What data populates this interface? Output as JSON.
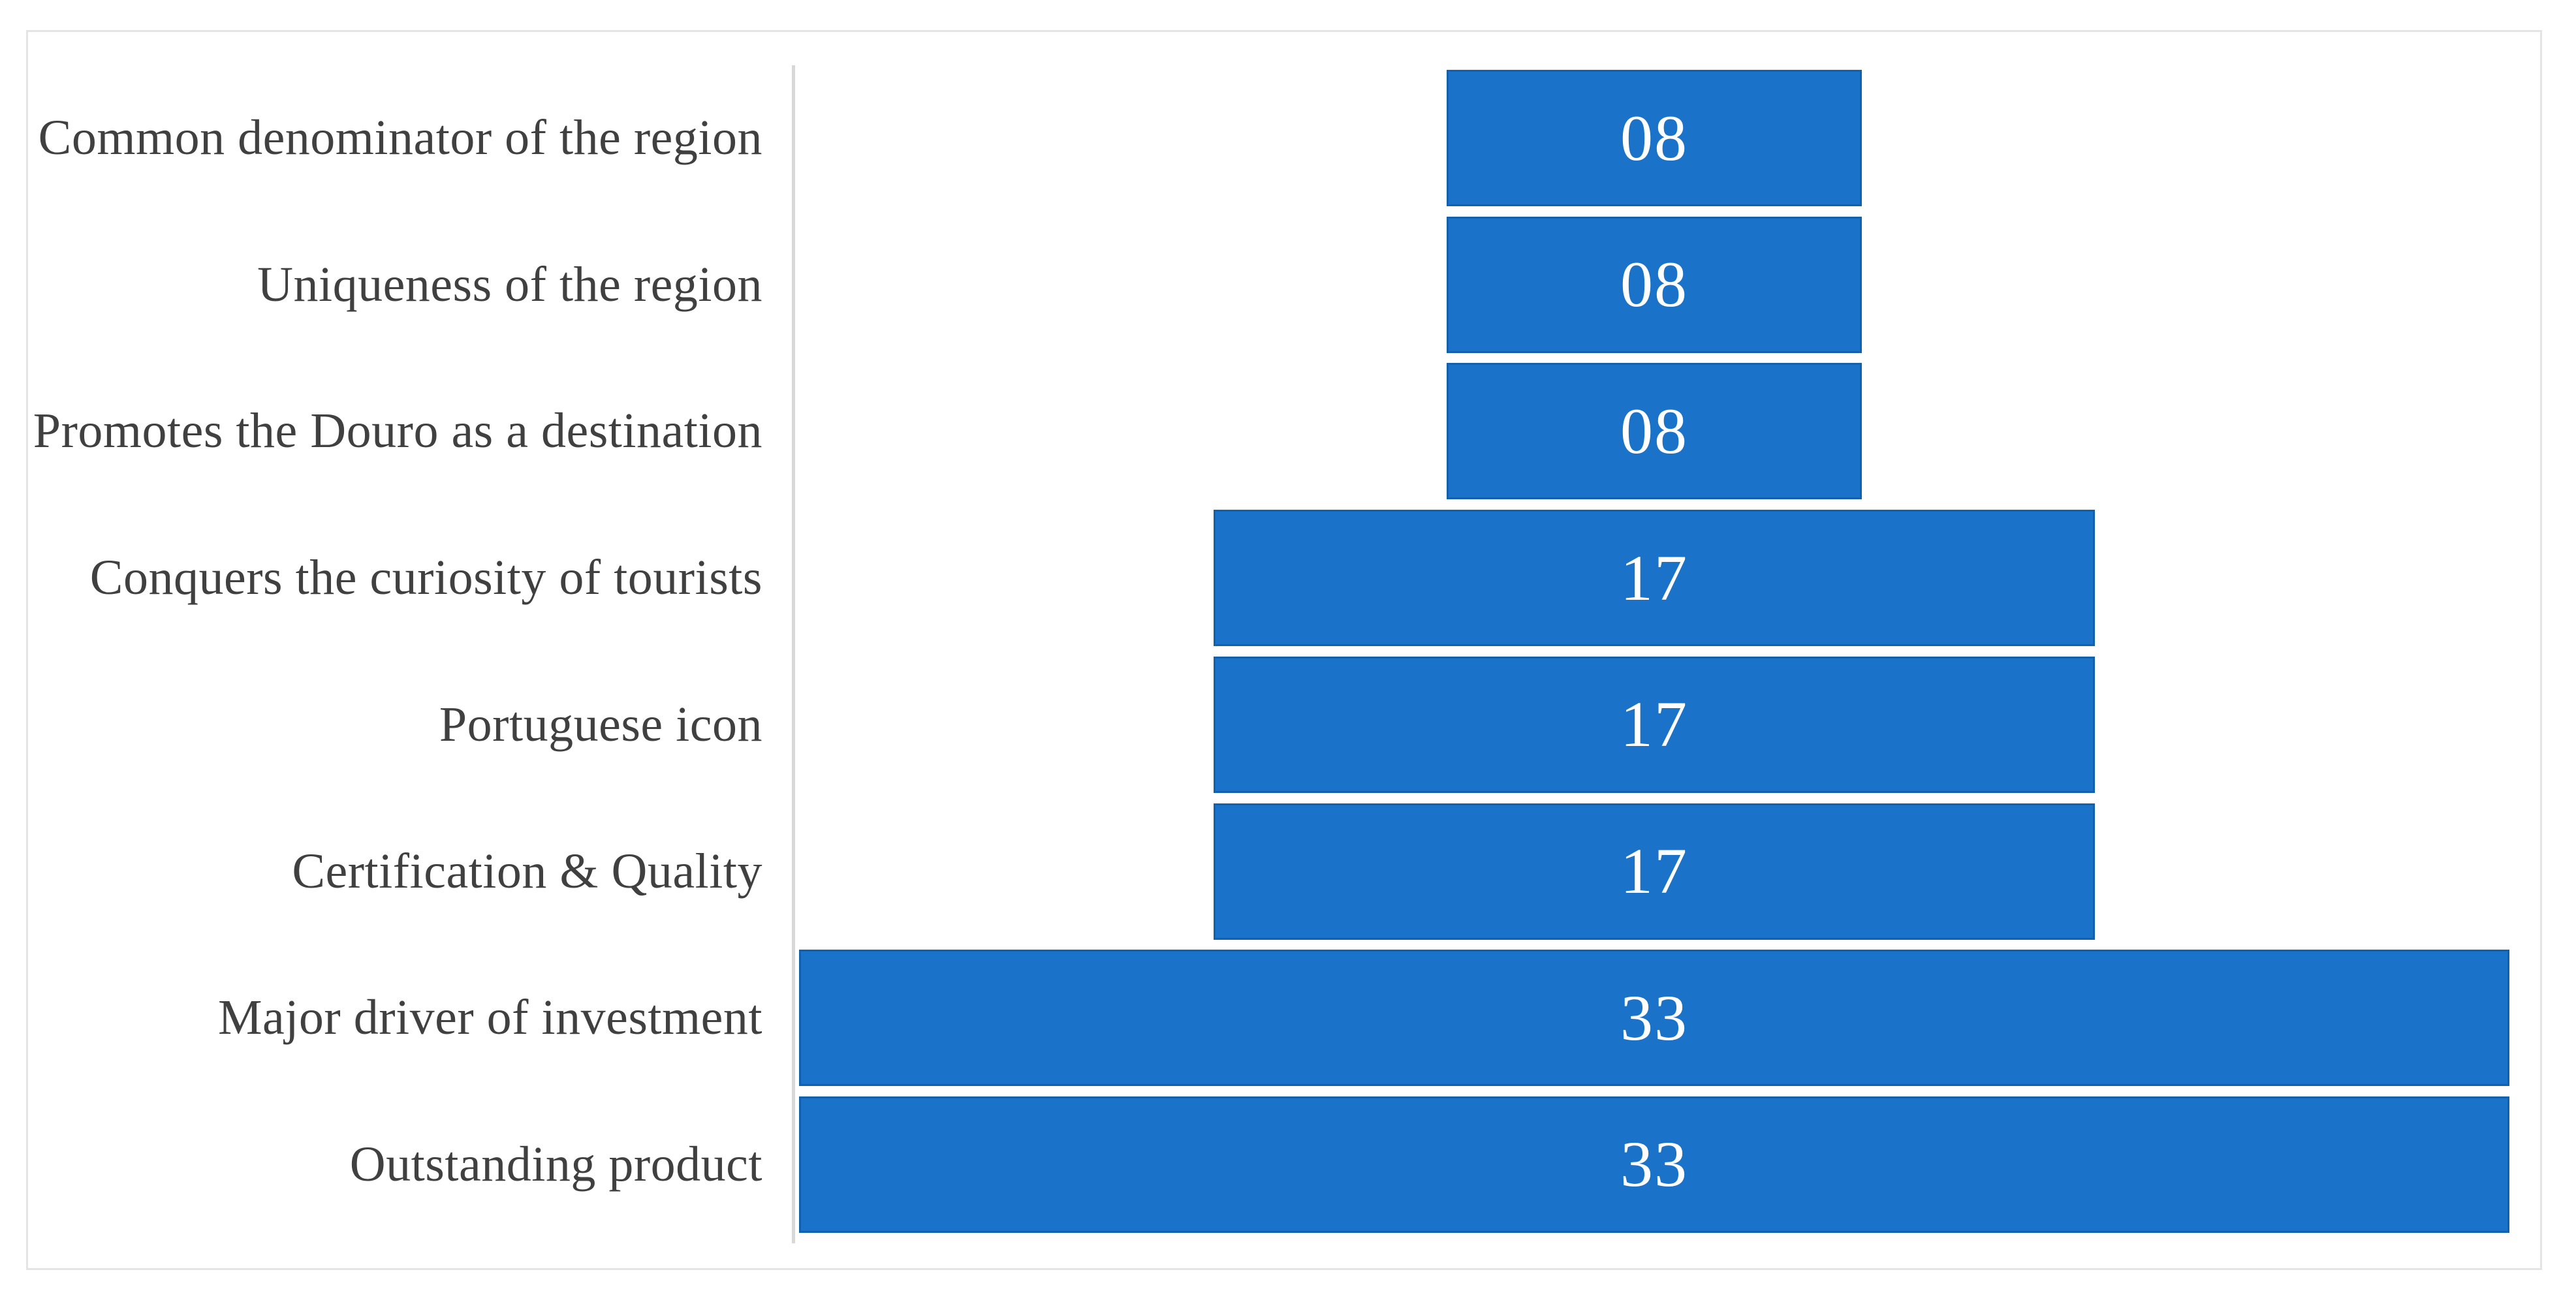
{
  "chart_data": {
    "type": "bar",
    "subtype": "funnel-horizontal-centered-bars",
    "title": "",
    "xlabel": "",
    "ylabel": "",
    "grid": false,
    "legend": false,
    "bars_anchor": "centered",
    "xmax": 33,
    "categories": [
      "Common denominator of the region",
      "Uniqueness of the region",
      "Promotes the Douro as a destination",
      "Conquers the curiosity of tourists",
      "Portuguese icon",
      "Certification & Quality",
      "Major driver of investment",
      "Outstanding product"
    ],
    "values": [
      8,
      8,
      8,
      17,
      17,
      17,
      33,
      33
    ],
    "value_labels": [
      "08",
      "08",
      "08",
      "17",
      "17",
      "17",
      "33",
      "33"
    ],
    "colors": {
      "bar_fill": "#1B73C9",
      "bar_edge": "#1261AE",
      "value_label": "#FFFFFF",
      "category_label": "#404040",
      "axis_line": "#D8D8D8",
      "figure_border": "#E4E4E4",
      "background": "#FFFFFF"
    }
  }
}
